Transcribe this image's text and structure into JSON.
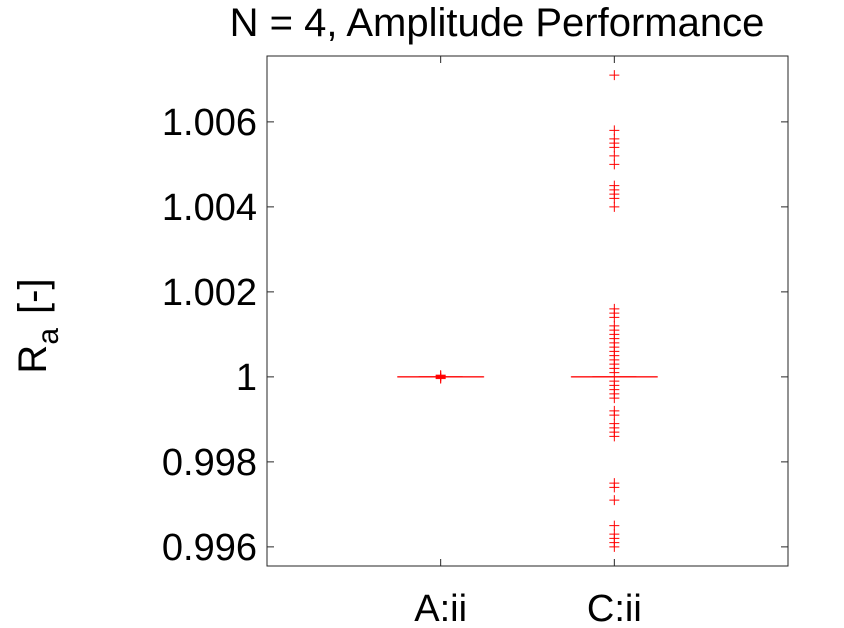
{
  "chart_data": {
    "type": "boxplot",
    "title": "N = 4, Amplitude Performance",
    "xlabel": "",
    "ylabel": "R",
    "ylabel_subscript": "a",
    "ylabel_unit": "[-]",
    "ylim": [
      0.99555,
      1.00755
    ],
    "yticks": [
      0.996,
      0.998,
      1,
      1.002,
      1.004,
      1.006
    ],
    "ytick_labels": [
      "0.996",
      "0.998",
      "1",
      "1.002",
      "1.004",
      "1.006"
    ],
    "categories": [
      "A:ii",
      "C:ii"
    ],
    "grid": false,
    "color": "#ff0000",
    "boxes": [
      {
        "category": "A:ii",
        "q1": 1.0,
        "median": 1.0,
        "q3": 1.0,
        "whisker_low": 1.0,
        "whisker_high": 1.0,
        "outliers": [
          0.99996,
          0.99998,
          1.00002,
          1.00004
        ]
      },
      {
        "category": "C:ii",
        "q1": 1.0,
        "median": 1.0,
        "q3": 1.0,
        "whisker_low": 1.0,
        "whisker_high": 1.0,
        "outliers": [
          1.0071,
          1.0058,
          1.0056,
          1.0055,
          1.0054,
          1.0052,
          1.005,
          1.0045,
          1.0044,
          1.0043,
          1.0042,
          1.004,
          1.0016,
          1.0015,
          1.0014,
          1.0012,
          1.0011,
          1.001,
          1.0009,
          1.0008,
          1.0007,
          1.0006,
          1.0005,
          1.0004,
          1.0003,
          1.0002,
          1.0001,
          0.9999,
          0.9998,
          0.9997,
          0.9996,
          0.9995,
          0.9992,
          0.9991,
          0.9989,
          0.9988,
          0.9987,
          0.9986,
          0.9975,
          0.9974,
          0.9971,
          0.9965,
          0.9963,
          0.9962,
          0.9961,
          0.996
        ]
      }
    ]
  }
}
